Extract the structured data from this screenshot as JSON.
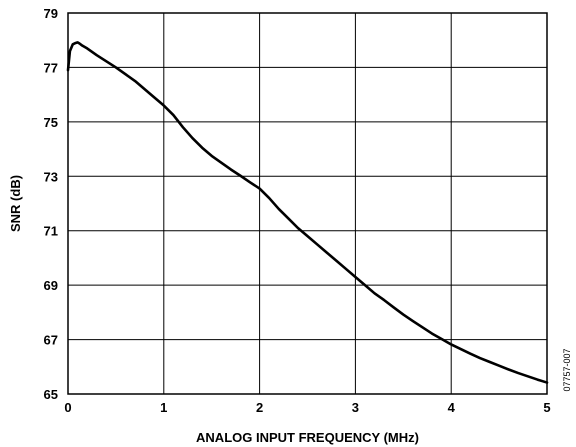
{
  "chart_data": {
    "type": "line",
    "title": "",
    "xlabel": "ANALOG INPUT FREQUENCY (MHz)",
    "ylabel": "SNR (dB)",
    "xlim": [
      0,
      5
    ],
    "ylim": [
      65,
      79
    ],
    "xticks": [
      "0",
      "1",
      "2",
      "3",
      "4",
      "5"
    ],
    "yticks": [
      "65",
      "67",
      "69",
      "71",
      "73",
      "75",
      "77",
      "79"
    ],
    "grid": true,
    "legend": "none",
    "figure_id": "07757-007",
    "series": [
      {
        "color": "#000000",
        "x": [
          0.0,
          0.02,
          0.05,
          0.08,
          0.1,
          0.12,
          0.15,
          0.2,
          0.3,
          0.5,
          0.7,
          0.9,
          1.0,
          1.1,
          1.2,
          1.3,
          1.4,
          1.5,
          1.6,
          1.7,
          1.8,
          1.9,
          2.0,
          2.1,
          2.2,
          2.3,
          2.4,
          2.5,
          2.6,
          2.7,
          2.8,
          2.9,
          3.0,
          3.1,
          3.2,
          3.3,
          3.4,
          3.5,
          3.6,
          3.7,
          3.8,
          3.9,
          4.0,
          4.1,
          4.2,
          4.3,
          4.4,
          4.5,
          4.6,
          4.7,
          4.8,
          4.9,
          5.0
        ],
        "y": [
          76.9,
          77.6,
          77.85,
          77.9,
          77.92,
          77.88,
          77.8,
          77.7,
          77.45,
          77.0,
          76.5,
          75.9,
          75.6,
          75.25,
          74.8,
          74.4,
          74.05,
          73.75,
          73.5,
          73.25,
          73.02,
          72.78,
          72.55,
          72.2,
          71.8,
          71.45,
          71.1,
          70.8,
          70.5,
          70.2,
          69.9,
          69.6,
          69.3,
          69.0,
          68.7,
          68.45,
          68.18,
          67.92,
          67.68,
          67.45,
          67.22,
          67.02,
          66.82,
          66.65,
          66.48,
          66.32,
          66.18,
          66.04,
          65.9,
          65.77,
          65.65,
          65.53,
          65.42
        ]
      }
    ]
  }
}
